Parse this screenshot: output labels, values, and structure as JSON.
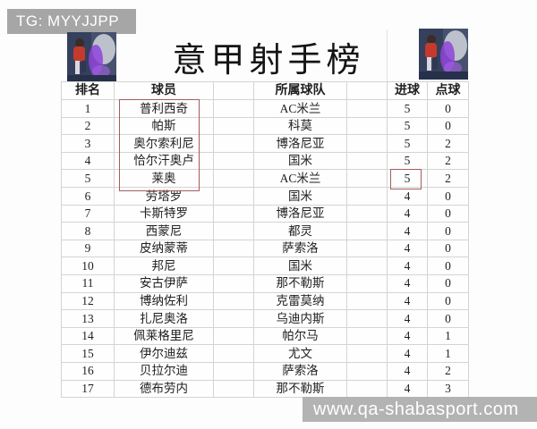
{
  "overlays": {
    "telegram_badge": "TG: MYYJJPP",
    "watermark": "www.qa-shabasport.com"
  },
  "title": "意甲射手榜",
  "table": {
    "headers": [
      "排名",
      "球员",
      "所属球队",
      "进球",
      "点球"
    ],
    "rows": [
      {
        "rank": "1",
        "player": "普利西奇",
        "team": "AC米兰",
        "goals": "5",
        "penalties": "0"
      },
      {
        "rank": "2",
        "player": "帕斯",
        "team": "科莫",
        "goals": "5",
        "penalties": "0"
      },
      {
        "rank": "3",
        "player": "奥尔索利尼",
        "team": "博洛尼亚",
        "goals": "5",
        "penalties": "2"
      },
      {
        "rank": "4",
        "player": "恰尔汗奥卢",
        "team": "国米",
        "goals": "5",
        "penalties": "2"
      },
      {
        "rank": "5",
        "player": "莱奥",
        "team": "AC米兰",
        "goals": "5",
        "penalties": "2"
      },
      {
        "rank": "6",
        "player": "劳塔罗",
        "team": "国米",
        "goals": "4",
        "penalties": "0"
      },
      {
        "rank": "7",
        "player": "卡斯特罗",
        "team": "博洛尼亚",
        "goals": "4",
        "penalties": "0"
      },
      {
        "rank": "8",
        "player": "西蒙尼",
        "team": "都灵",
        "goals": "4",
        "penalties": "0"
      },
      {
        "rank": "9",
        "player": "皮纳蒙蒂",
        "team": "萨索洛",
        "goals": "4",
        "penalties": "0"
      },
      {
        "rank": "10",
        "player": "邦尼",
        "team": "国米",
        "goals": "4",
        "penalties": "0"
      },
      {
        "rank": "11",
        "player": "安古伊萨",
        "team": "那不勒斯",
        "goals": "4",
        "penalties": "0"
      },
      {
        "rank": "12",
        "player": "博纳佐利",
        "team": "克雷莫纳",
        "goals": "4",
        "penalties": "0"
      },
      {
        "rank": "13",
        "player": "扎尼奥洛",
        "team": "乌迪内斯",
        "goals": "4",
        "penalties": "0"
      },
      {
        "rank": "14",
        "player": "佩莱格里尼",
        "team": "帕尔马",
        "goals": "4",
        "penalties": "1"
      },
      {
        "rank": "15",
        "player": "伊尔迪兹",
        "team": "尤文",
        "goals": "4",
        "penalties": "1"
      },
      {
        "rank": "16",
        "player": "贝拉尔迪",
        "team": "萨索洛",
        "goals": "4",
        "penalties": "2"
      },
      {
        "rank": "17",
        "player": "德布劳内",
        "team": "那不勒斯",
        "goals": "4",
        "penalties": "3"
      }
    ]
  },
  "annotations": {
    "highlight_color": "#a55c60",
    "players_box_rows": "1-5",
    "goals_box_row": "5"
  },
  "colors": {
    "badge_bg": "#a6a6a6",
    "watermark_bg": "#b3b3b3",
    "table_border": "#d4d4d4",
    "text": "#1f1f1f"
  }
}
